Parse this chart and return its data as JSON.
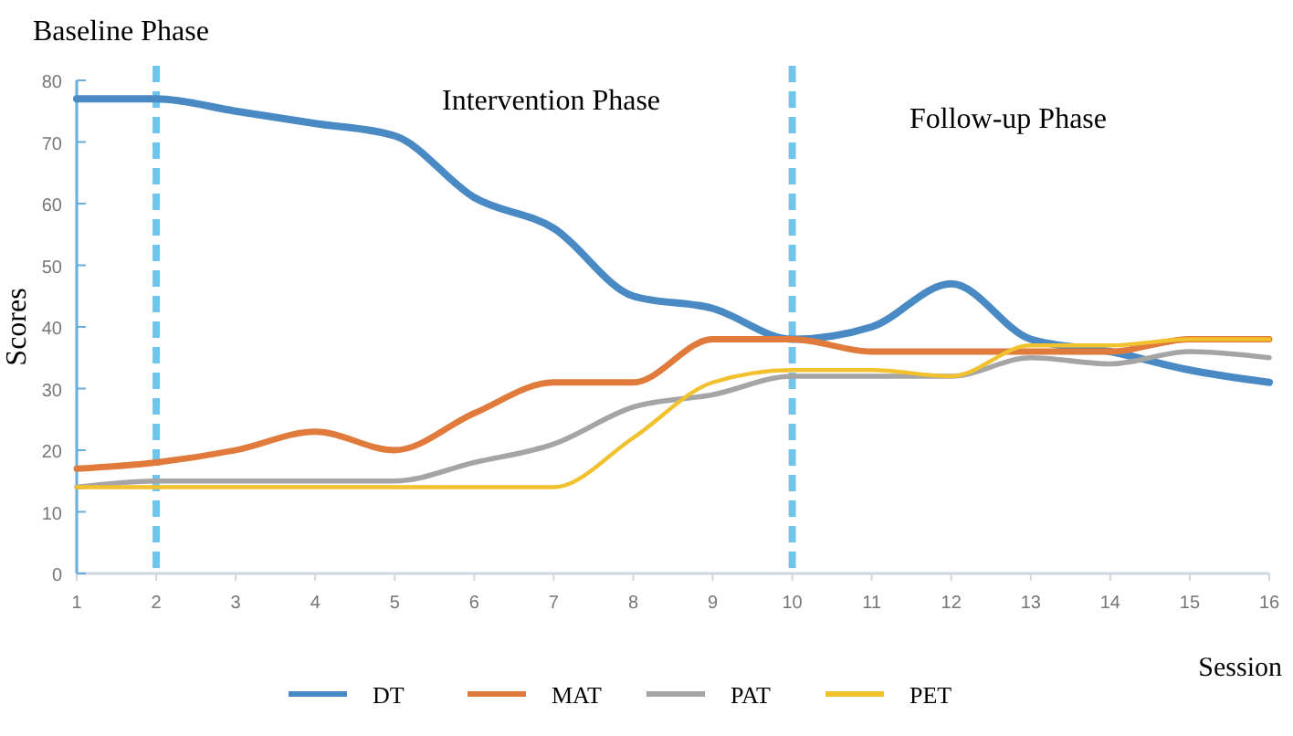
{
  "chart_data": {
    "type": "line",
    "ylabel": "Scores",
    "xlabel": "Session",
    "x": [
      1,
      2,
      3,
      4,
      5,
      6,
      7,
      8,
      9,
      10,
      11,
      12,
      13,
      14,
      15,
      16
    ],
    "xlim": [
      1,
      16
    ],
    "xticks": [
      1,
      2,
      3,
      4,
      5,
      6,
      7,
      8,
      9,
      10,
      11,
      12,
      13,
      14,
      15,
      16
    ],
    "ylim": [
      0,
      80
    ],
    "yticks": [
      0,
      10,
      20,
      30,
      40,
      50,
      60,
      70,
      80
    ],
    "series": [
      {
        "name": "DT",
        "color": "#4a8ac4",
        "values": [
          77,
          77,
          75,
          73,
          71,
          61,
          56,
          45,
          43,
          38,
          40,
          47,
          38,
          36,
          33,
          31
        ]
      },
      {
        "name": "MAT",
        "color": "#e07b3c",
        "values": [
          17,
          18,
          20,
          23,
          20,
          26,
          31,
          31,
          38,
          38,
          36,
          36,
          36,
          36,
          38,
          38
        ]
      },
      {
        "name": "PAT",
        "color": "#a5a5a5",
        "values": [
          14,
          15,
          15,
          15,
          15,
          18,
          21,
          27,
          29,
          32,
          32,
          32,
          35,
          34,
          36,
          35
        ]
      },
      {
        "name": "PET",
        "color": "#f2c12e",
        "values": [
          14,
          14,
          14,
          14,
          14,
          14,
          14,
          22,
          31,
          33,
          33,
          32,
          37,
          37,
          38,
          38
        ]
      }
    ],
    "ref_lines": [
      {
        "axis": "x",
        "value": 2,
        "color": "#6ec6ef",
        "line_style": "dashed"
      },
      {
        "axis": "x",
        "value": 10,
        "color": "#6ec6ef",
        "line_style": "dashed"
      }
    ],
    "annotations": [
      "Baseline Phase",
      "Intervention Phase",
      "Follow-up Phase"
    ],
    "legend": "bottom",
    "grid": false,
    "marker": "none",
    "line_style": "solid"
  }
}
